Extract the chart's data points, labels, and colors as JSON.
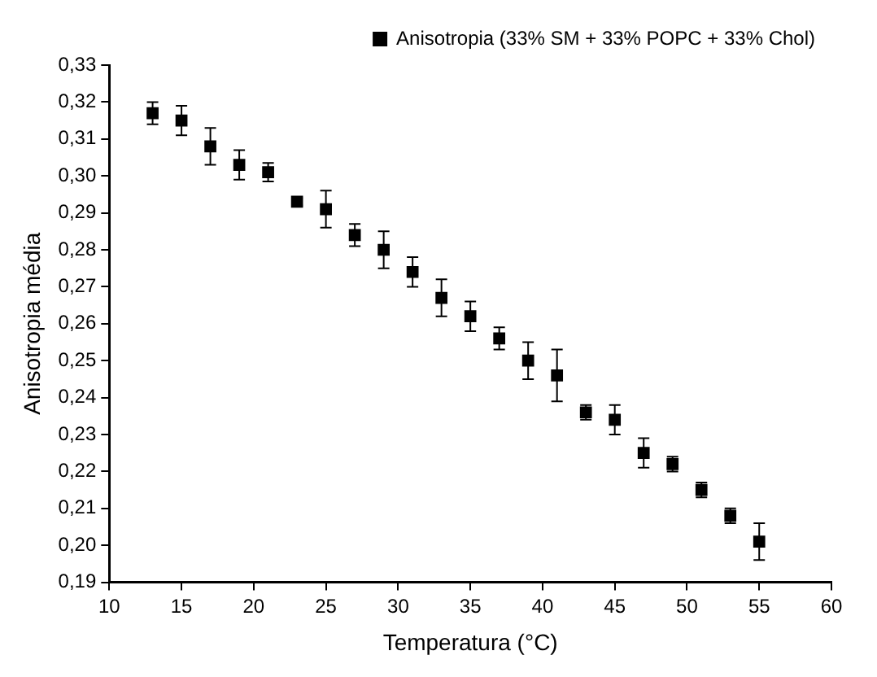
{
  "chart_data": {
    "type": "scatter",
    "xlabel": "Temperatura (°C)",
    "ylabel": "Anisotropia média",
    "x": [
      13,
      15,
      17,
      19,
      21,
      23,
      25,
      27,
      29,
      31,
      33,
      35,
      37,
      39,
      41,
      43,
      45,
      47,
      49,
      51,
      53,
      55
    ],
    "series": [
      {
        "name": "Anisotropia (33% SM + 33% POPC + 33% Chol)",
        "color": "#000000",
        "values": [
          0.317,
          0.315,
          0.308,
          0.303,
          0.301,
          0.293,
          0.291,
          0.284,
          0.28,
          0.274,
          0.267,
          0.262,
          0.256,
          0.25,
          0.246,
          0.236,
          0.234,
          0.225,
          0.222,
          0.215,
          0.208,
          0.201
        ],
        "errors": [
          0.003,
          0.004,
          0.005,
          0.004,
          0.0025,
          0.001,
          0.005,
          0.003,
          0.005,
          0.004,
          0.005,
          0.004,
          0.003,
          0.005,
          0.007,
          0.002,
          0.004,
          0.004,
          0.002,
          0.002,
          0.002,
          0.005
        ]
      }
    ],
    "xlim": [
      10,
      60
    ],
    "xticks": [
      10,
      15,
      20,
      25,
      30,
      35,
      40,
      45,
      50,
      55,
      60
    ],
    "ylim": [
      0.19,
      0.33
    ],
    "yticks": [
      {
        "value": 0.19,
        "label": "0,19"
      },
      {
        "value": 0.2,
        "label": "0,20"
      },
      {
        "value": 0.21,
        "label": "0,21"
      },
      {
        "value": 0.22,
        "label": "0,22"
      },
      {
        "value": 0.23,
        "label": "0,23"
      },
      {
        "value": 0.24,
        "label": "0,24"
      },
      {
        "value": 0.25,
        "label": "0,25"
      },
      {
        "value": 0.26,
        "label": "0,26"
      },
      {
        "value": 0.27,
        "label": "0,27"
      },
      {
        "value": 0.28,
        "label": "0,28"
      },
      {
        "value": 0.29,
        "label": "0,29"
      },
      {
        "value": 0.3,
        "label": "0,30"
      },
      {
        "value": 0.31,
        "label": "0,31"
      },
      {
        "value": 0.32,
        "label": "0,32"
      },
      {
        "value": 0.33,
        "label": "0,33"
      }
    ],
    "marker": "square",
    "legend": "top right",
    "grid": false
  }
}
